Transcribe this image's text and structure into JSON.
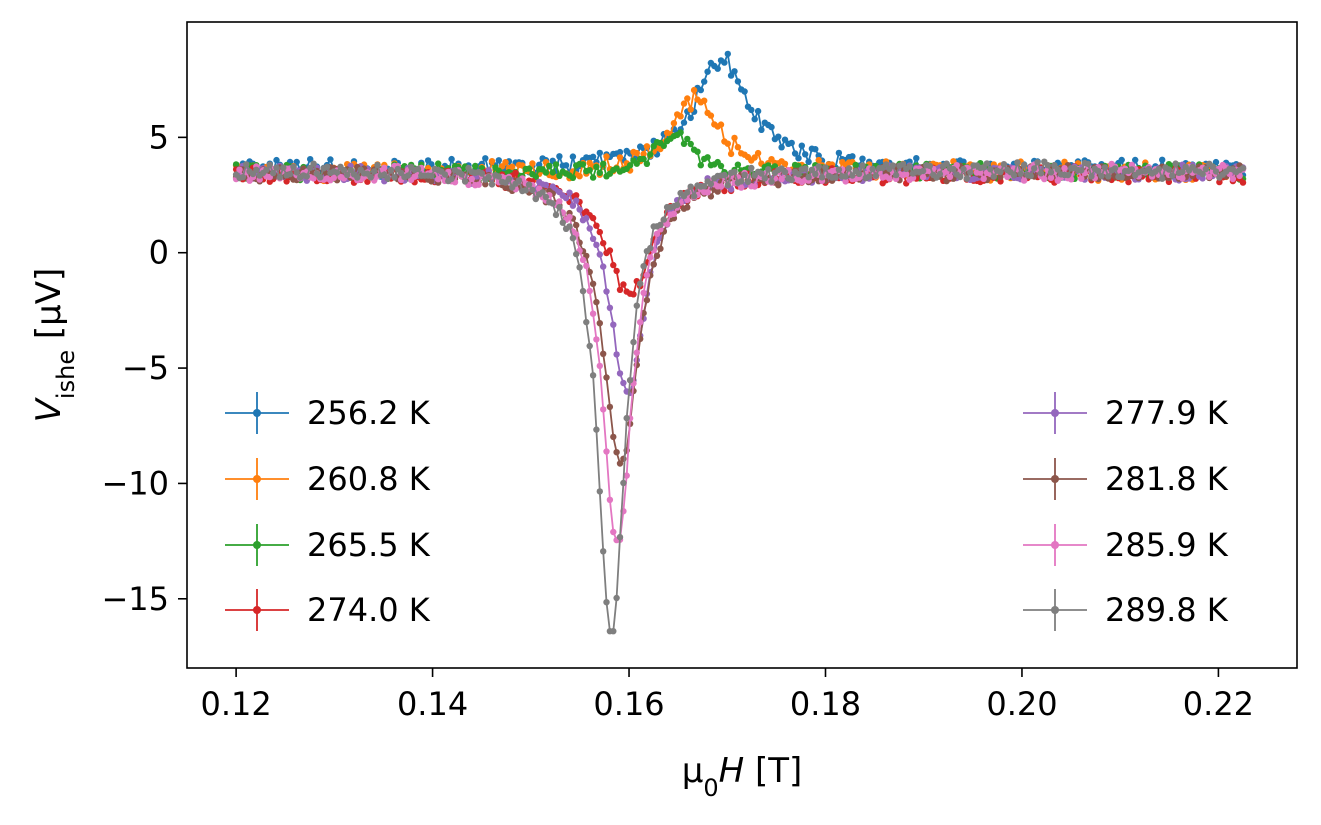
{
  "chart_data": {
    "type": "line",
    "xlabel": {
      "prefix": "μ",
      "sub": "0",
      "var": "H",
      "unit": " [T]"
    },
    "ylabel": {
      "var": "V",
      "sub": "ishe",
      "unit": " [μV]"
    },
    "xlim": [
      0.115,
      0.228
    ],
    "ylim": [
      -18,
      10
    ],
    "xticks": [
      {
        "value": 0.12,
        "label": "0.12"
      },
      {
        "value": 0.14,
        "label": "0.14"
      },
      {
        "value": 0.16,
        "label": "0.16"
      },
      {
        "value": 0.18,
        "label": "0.18"
      },
      {
        "value": 0.2,
        "label": "0.20"
      },
      {
        "value": 0.22,
        "label": "0.22"
      }
    ],
    "yticks": [
      {
        "value": 5,
        "label": "5"
      },
      {
        "value": 0,
        "label": "0"
      },
      {
        "value": -5,
        "label": "−5"
      },
      {
        "value": -10,
        "label": "−10"
      },
      {
        "value": -15,
        "label": "−15"
      }
    ],
    "x_range": [
      0.12,
      0.2225
    ],
    "legend_positions": [
      "left",
      "right"
    ],
    "series": [
      {
        "name": "256.2 K",
        "color": "#1f77b4",
        "baseline": 3.6,
        "dip": {
          "center": 0.1695,
          "depth": -4.8,
          "width": 0.0035
        },
        "noise": 0.35
      },
      {
        "name": "260.8 K",
        "color": "#ff7f0e",
        "baseline": 3.5,
        "dip": {
          "center": 0.1668,
          "depth": -3.2,
          "width": 0.0028
        },
        "noise": 0.35
      },
      {
        "name": "265.5 K",
        "color": "#2ca02c",
        "baseline": 3.5,
        "dip": {
          "center": 0.1645,
          "depth": -1.6,
          "width": 0.0022
        },
        "noise": 0.3
      },
      {
        "name": "274.0 K",
        "color": "#d62728",
        "baseline": 3.4,
        "dip": {
          "center": 0.16,
          "depth": 5.3,
          "width": 0.0028
        },
        "noise": 0.3
      },
      {
        "name": "277.9 K",
        "color": "#9467bd",
        "baseline": 3.5,
        "dip": {
          "center": 0.1598,
          "depth": 9.6,
          "width": 0.0022
        },
        "noise": 0.3
      },
      {
        "name": "281.8 K",
        "color": "#8c564b",
        "baseline": 3.5,
        "dip": {
          "center": 0.1592,
          "depth": 12.6,
          "width": 0.0023
        },
        "noise": 0.3
      },
      {
        "name": "285.9 K",
        "color": "#e377c2",
        "baseline": 3.5,
        "dip": {
          "center": 0.1588,
          "depth": 16.2,
          "width": 0.0019
        },
        "noise": 0.3
      },
      {
        "name": "289.8 K",
        "color": "#7f7f7f",
        "baseline": 3.6,
        "dip": {
          "center": 0.1582,
          "depth": 20.3,
          "width": 0.0017
        },
        "noise": 0.3
      }
    ]
  }
}
